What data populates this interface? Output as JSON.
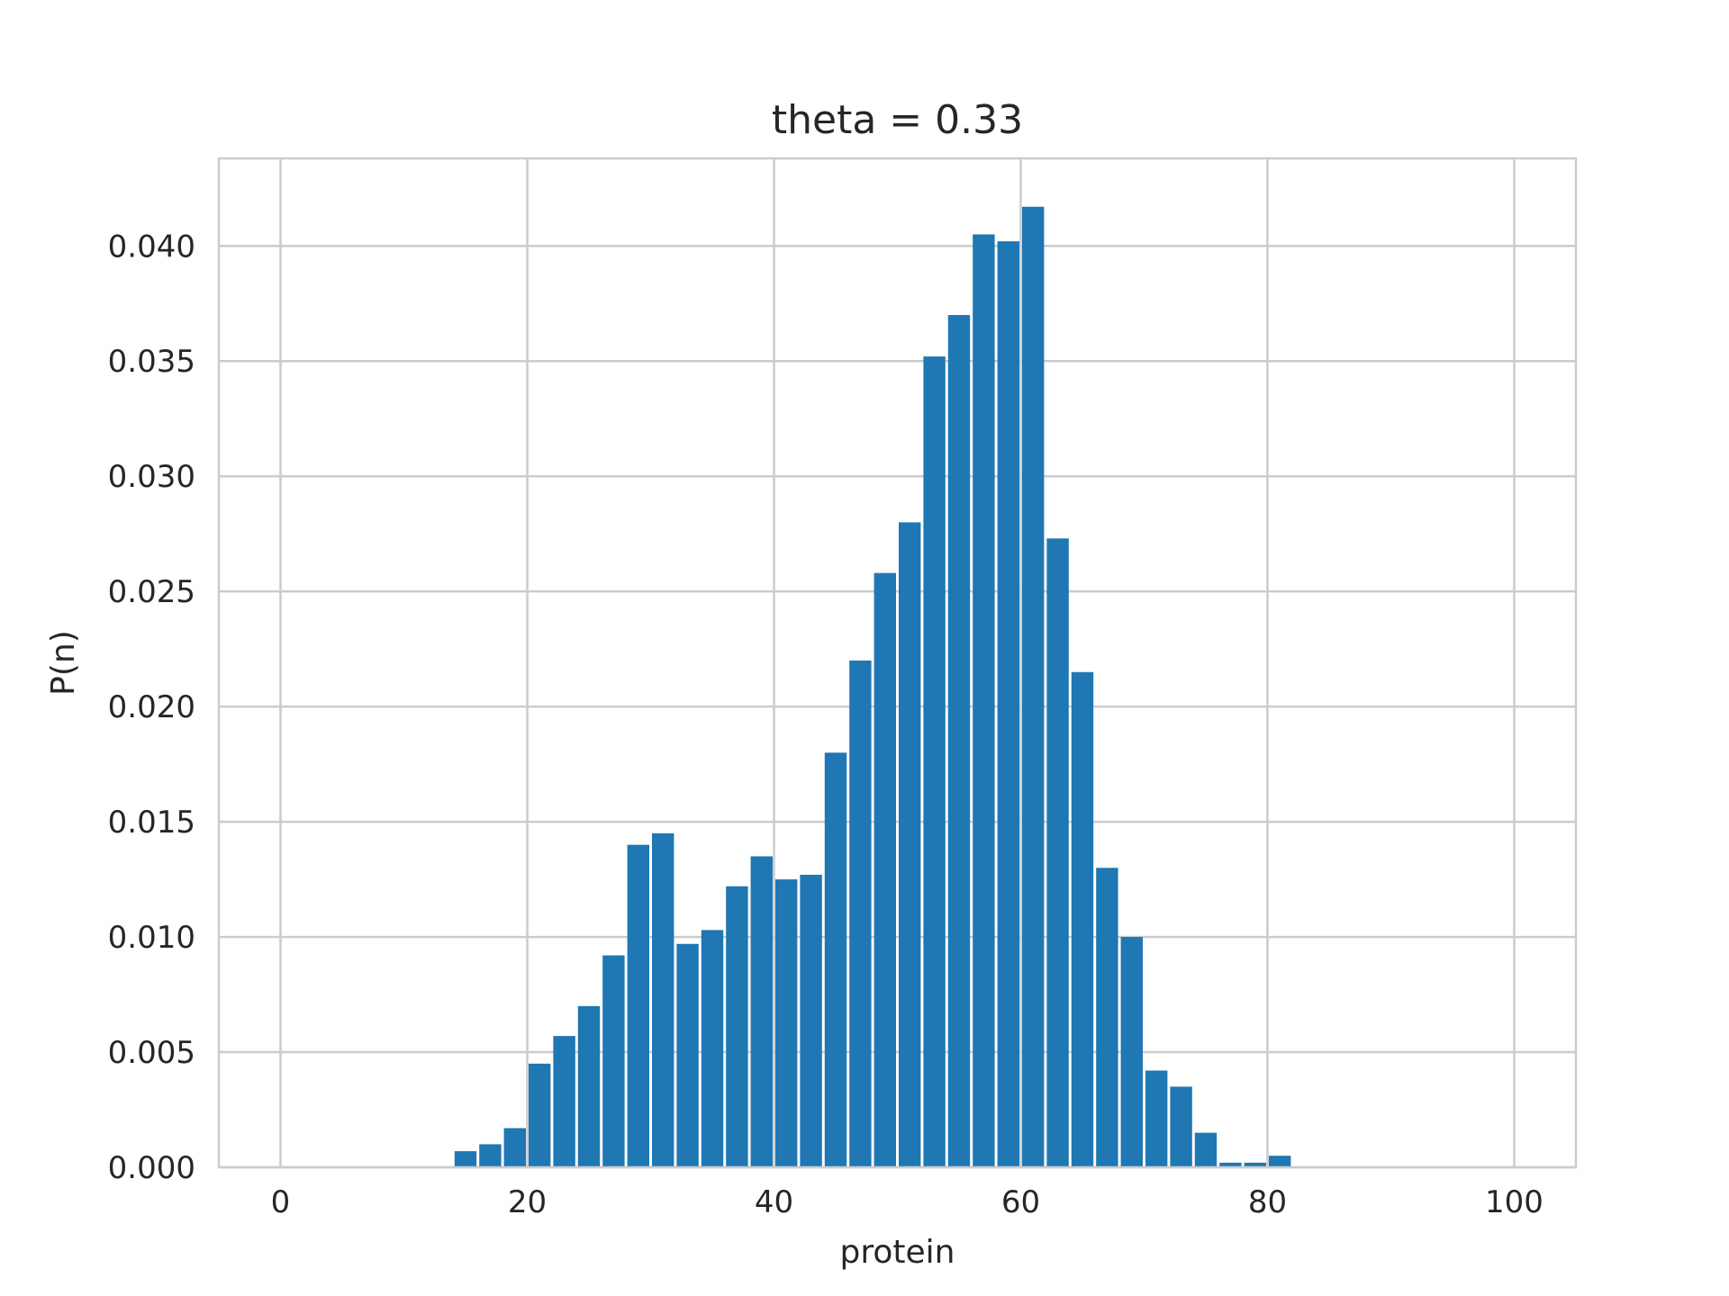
{
  "chart_data": {
    "type": "bar",
    "title": "theta = 0.33",
    "xlabel": "protein",
    "ylabel": "P(n)",
    "xlim": [
      -5,
      105
    ],
    "ylim": [
      0,
      0.0438
    ],
    "xticks": [
      0,
      20,
      40,
      60,
      80,
      100
    ],
    "xtick_labels": [
      "0",
      "20",
      "40",
      "60",
      "80",
      "100"
    ],
    "yticks": [
      0,
      0.005,
      0.01,
      0.015,
      0.02,
      0.025,
      0.03,
      0.035,
      0.04
    ],
    "ytick_labels": [
      "0.000",
      "0.005",
      "0.010",
      "0.015",
      "0.020",
      "0.025",
      "0.030",
      "0.035",
      "0.040"
    ],
    "grid": true,
    "color": "#1f77b4",
    "bin_width": 2,
    "bins": [
      {
        "x": 15,
        "y": 0.0007
      },
      {
        "x": 17,
        "y": 0.001
      },
      {
        "x": 19,
        "y": 0.0017
      },
      {
        "x": 21,
        "y": 0.0045
      },
      {
        "x": 23,
        "y": 0.0057
      },
      {
        "x": 25,
        "y": 0.007
      },
      {
        "x": 27,
        "y": 0.0092
      },
      {
        "x": 29,
        "y": 0.014
      },
      {
        "x": 31,
        "y": 0.0145
      },
      {
        "x": 33,
        "y": 0.0097
      },
      {
        "x": 35,
        "y": 0.0103
      },
      {
        "x": 37,
        "y": 0.0122
      },
      {
        "x": 39,
        "y": 0.0135
      },
      {
        "x": 41,
        "y": 0.0125
      },
      {
        "x": 43,
        "y": 0.0127
      },
      {
        "x": 45,
        "y": 0.018
      },
      {
        "x": 47,
        "y": 0.022
      },
      {
        "x": 49,
        "y": 0.0258
      },
      {
        "x": 51,
        "y": 0.028
      },
      {
        "x": 53,
        "y": 0.0352
      },
      {
        "x": 55,
        "y": 0.037
      },
      {
        "x": 57,
        "y": 0.0405
      },
      {
        "x": 59,
        "y": 0.0402
      },
      {
        "x": 61,
        "y": 0.0417
      },
      {
        "x": 63,
        "y": 0.0273
      },
      {
        "x": 65,
        "y": 0.0215
      },
      {
        "x": 67,
        "y": 0.013
      },
      {
        "x": 69,
        "y": 0.01
      },
      {
        "x": 71,
        "y": 0.0042
      },
      {
        "x": 73,
        "y": 0.0035
      },
      {
        "x": 75,
        "y": 0.0015
      },
      {
        "x": 77,
        "y": 0.0002
      },
      {
        "x": 79,
        "y": 0.0002
      },
      {
        "x": 81,
        "y": 0.0005
      }
    ]
  }
}
